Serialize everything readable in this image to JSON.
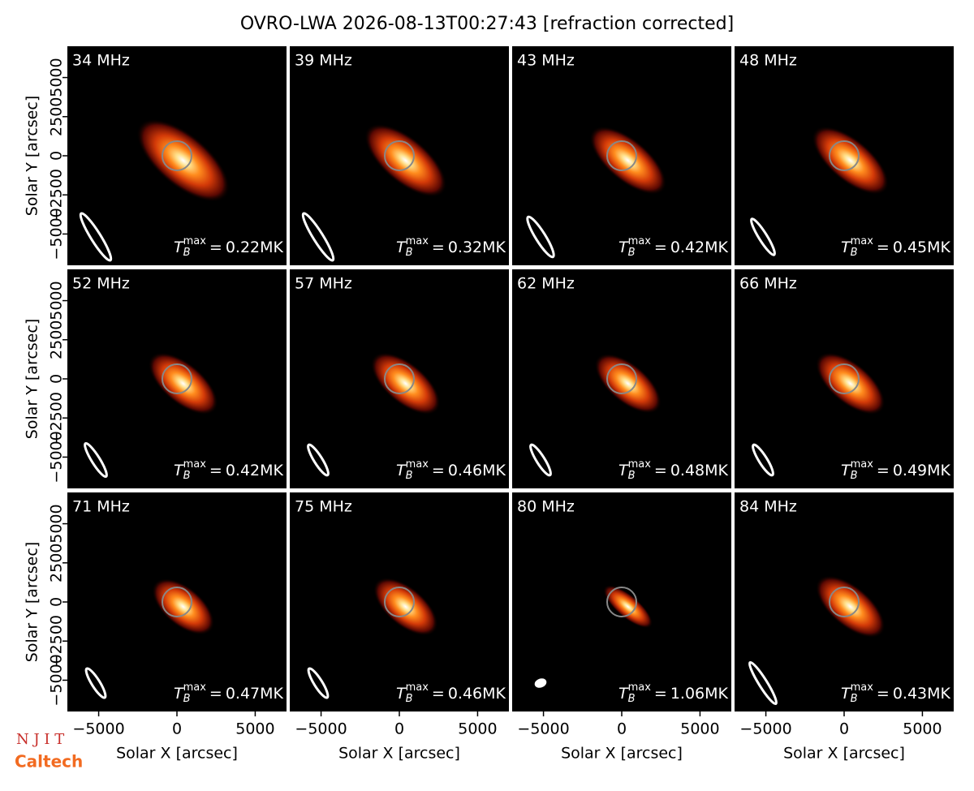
{
  "figure": {
    "title": "OVRO-LWA 2026-08-13T00:27:43 [refraction corrected]",
    "xlabel": "Solar X [arcsec]",
    "ylabel": "Solar Y [arcsec]",
    "xlim": [
      -7000,
      7000
    ],
    "ylim": [
      -7000,
      7000
    ],
    "xticks": [
      {
        "value": -5000,
        "label": "−5000"
      },
      0,
      5000
    ],
    "yticks": [
      {
        "value": -5000,
        "label": "−5000"
      },
      {
        "value": -2500,
        "label": "−2500"
      },
      0,
      2500,
      5000
    ],
    "tmax_symbol": {
      "base": "T",
      "sub": "B",
      "sup": "max",
      "eq": "="
    },
    "logos": [
      "N J I T",
      "Caltech"
    ],
    "panels": [
      {
        "freq": "34 MHz",
        "tmax": "0.22MK"
      },
      {
        "freq": "39 MHz",
        "tmax": "0.32MK"
      },
      {
        "freq": "43 MHz",
        "tmax": "0.42MK"
      },
      {
        "freq": "48 MHz",
        "tmax": "0.45MK"
      },
      {
        "freq": "52 MHz",
        "tmax": "0.42MK"
      },
      {
        "freq": "57 MHz",
        "tmax": "0.46MK"
      },
      {
        "freq": "62 MHz",
        "tmax": "0.48MK"
      },
      {
        "freq": "66 MHz",
        "tmax": "0.49MK"
      },
      {
        "freq": "71 MHz",
        "tmax": "0.47MK"
      },
      {
        "freq": "75 MHz",
        "tmax": "0.46MK"
      },
      {
        "freq": "80 MHz",
        "tmax": "1.06MK"
      },
      {
        "freq": "84 MHz",
        "tmax": "0.43MK"
      }
    ]
  }
}
